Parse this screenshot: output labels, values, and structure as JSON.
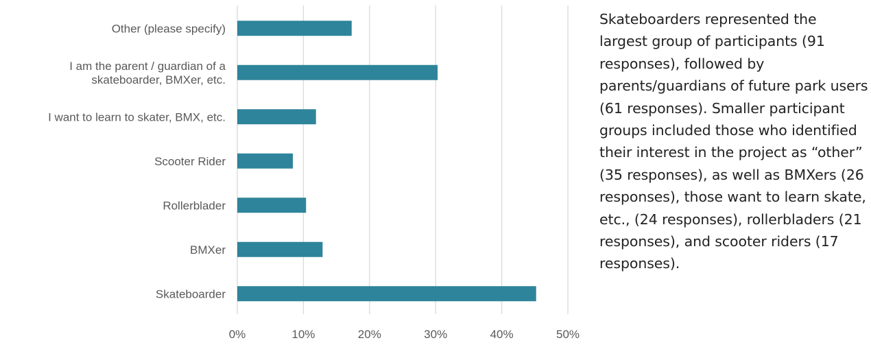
{
  "chart_data": {
    "type": "bar",
    "orientation": "horizontal",
    "categories": [
      "Other (please specify)",
      [
        "I am the parent / guardian of a",
        "skateboarder, BMXer, etc."
      ],
      "I want to learn to skater, BMX, etc.",
      "Scooter Rider",
      "Rollerblader",
      "BMXer",
      "Skateboarder"
    ],
    "values": [
      17.3,
      30.3,
      11.9,
      8.4,
      10.4,
      12.9,
      45.2
    ],
    "unit": "%",
    "xlim": [
      0,
      50
    ],
    "x_ticks": [
      "0%",
      "10%",
      "20%",
      "30%",
      "40%",
      "50%"
    ],
    "grid": "vertical",
    "legend": "none",
    "bar_color": "#2e849a"
  },
  "summary_text": "Skateboarders represented the largest group of participants (91 responses), followed by parents/guardians of future park users (61 responses). Smaller participant groups included those who identified their interest in the project as “other” (35 responses), as well as BMXers (26 responses), those want to learn skate, etc., (24 responses), rollerbladers (21 responses), and scooter riders (17 responses)."
}
